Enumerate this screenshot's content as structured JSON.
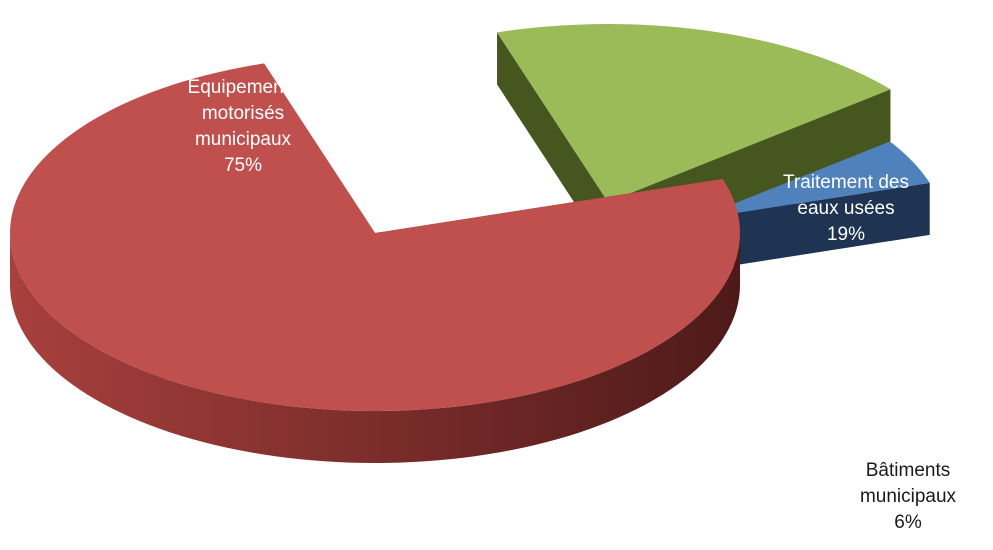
{
  "chart_data": {
    "type": "pie",
    "style": "3d-exploded",
    "title": "",
    "legend": "none",
    "slices": [
      {
        "label_lines": [
          "Équipements",
          "motorisés",
          "municipaux",
          "75%"
        ],
        "value": 75,
        "color": "#c0504d",
        "side_color": "#7a2a28",
        "label_color": "#ffffff"
      },
      {
        "label_lines": [
          "Traitement des",
          "eaux usées",
          "19%"
        ],
        "value": 19,
        "color": "#9bbb59",
        "side_color": "#45561f",
        "label_color": "#ffffff"
      },
      {
        "label_lines": [
          "Bâtiments",
          "municipaux",
          "6%"
        ],
        "value": 6,
        "color": "#4f81bd",
        "side_color": "#1f3352",
        "label_color": "#1a1a1a"
      }
    ]
  }
}
